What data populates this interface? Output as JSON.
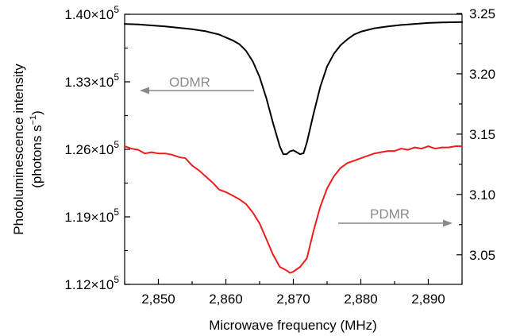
{
  "chart_data": {
    "type": "line",
    "xlabel": "Microwave frequency (MHz)",
    "ylabel_line1": "Photoluminescence intensity",
    "ylabel_line2_base": "(photons s",
    "ylabel_line2_sup": "−1",
    "ylabel_line2_end": ")",
    "xlim": [
      2845,
      2895
    ],
    "x_ticks": [
      2850,
      2860,
      2870,
      2880,
      2890
    ],
    "x_tick_labels": [
      "2,850",
      "2,860",
      "2,870",
      "2,880",
      "2,890"
    ],
    "ylim_left": [
      112000,
      140000
    ],
    "y_left_ticks": [
      112000,
      119000,
      126000,
      133000,
      140000
    ],
    "y_left_tick_mantissas": [
      "1.12",
      "1.19",
      "1.26",
      "1.33",
      "1.40"
    ],
    "y_left_tick_times": "×10",
    "y_left_tick_exponent": "5",
    "ylim_right": [
      3.0255,
      3.2493
    ],
    "y_right_ticks": [
      3.05,
      3.1,
      3.15,
      3.2,
      3.25
    ],
    "y_right_tick_labels": [
      "3.05",
      "3.10",
      "3.15",
      "3.20",
      "3.25"
    ],
    "series": [
      {
        "name": "ODMR",
        "axis": "left",
        "color": "#000000",
        "x": [
          2845,
          2847,
          2849,
          2851,
          2853,
          2855,
          2857,
          2859,
          2861,
          2862,
          2863,
          2864,
          2865,
          2866,
          2867,
          2868,
          2868.5,
          2869,
          2869.5,
          2870,
          2870.5,
          2871,
          2871.5,
          2872,
          2873,
          2874,
          2875,
          2876,
          2877,
          2878,
          2879,
          2880,
          2882,
          2884,
          2886,
          2888,
          2890,
          2892,
          2895
        ],
        "y": [
          139000,
          138950,
          138850,
          138750,
          138600,
          138450,
          138250,
          137900,
          137300,
          136900,
          136200,
          135100,
          133500,
          131300,
          128700,
          126300,
          125500,
          125500,
          125800,
          125900,
          125700,
          125500,
          125600,
          126700,
          129700,
          132500,
          134600,
          135900,
          136800,
          137400,
          137900,
          138200,
          138550,
          138750,
          138900,
          139000,
          139100,
          139150,
          139200
        ]
      },
      {
        "name": "PDMR",
        "axis": "right",
        "color": "#ee1c1c",
        "x": [
          2845,
          2846,
          2847,
          2848,
          2849,
          2850,
          2851,
          2852,
          2853,
          2854,
          2855,
          2856,
          2857,
          2858,
          2859,
          2860,
          2861,
          2862,
          2863,
          2864,
          2865,
          2866,
          2867,
          2868,
          2869,
          2869.5,
          2870,
          2871,
          2872,
          2873,
          2874,
          2875,
          2876,
          2877,
          2878,
          2879,
          2880,
          2881,
          2882,
          2883,
          2884,
          2885,
          2886,
          2887,
          2888,
          2889,
          2890,
          2891,
          2892,
          2893,
          2894,
          2895
        ],
        "y": [
          3.14,
          3.138,
          3.137,
          3.134,
          3.135,
          3.134,
          3.134,
          3.133,
          3.131,
          3.13,
          3.124,
          3.12,
          3.115,
          3.11,
          3.104,
          3.102,
          3.099,
          3.096,
          3.092,
          3.085,
          3.076,
          3.063,
          3.05,
          3.04,
          3.037,
          3.035,
          3.036,
          3.04,
          3.047,
          3.07,
          3.09,
          3.105,
          3.115,
          3.122,
          3.126,
          3.128,
          3.13,
          3.132,
          3.134,
          3.135,
          3.136,
          3.136,
          3.138,
          3.137,
          3.139,
          3.138,
          3.14,
          3.138,
          3.139,
          3.139,
          3.14,
          3.14
        ]
      }
    ],
    "annotations": [
      {
        "text": "ODMR",
        "arrow_direction": "left",
        "arrow_points_to_axis": "left",
        "color": "#8a8a8a"
      },
      {
        "text": "PDMR",
        "arrow_direction": "right",
        "arrow_points_to_axis": "right",
        "color": "#8a8a8a"
      }
    ],
    "grid": false,
    "legend": "none"
  }
}
